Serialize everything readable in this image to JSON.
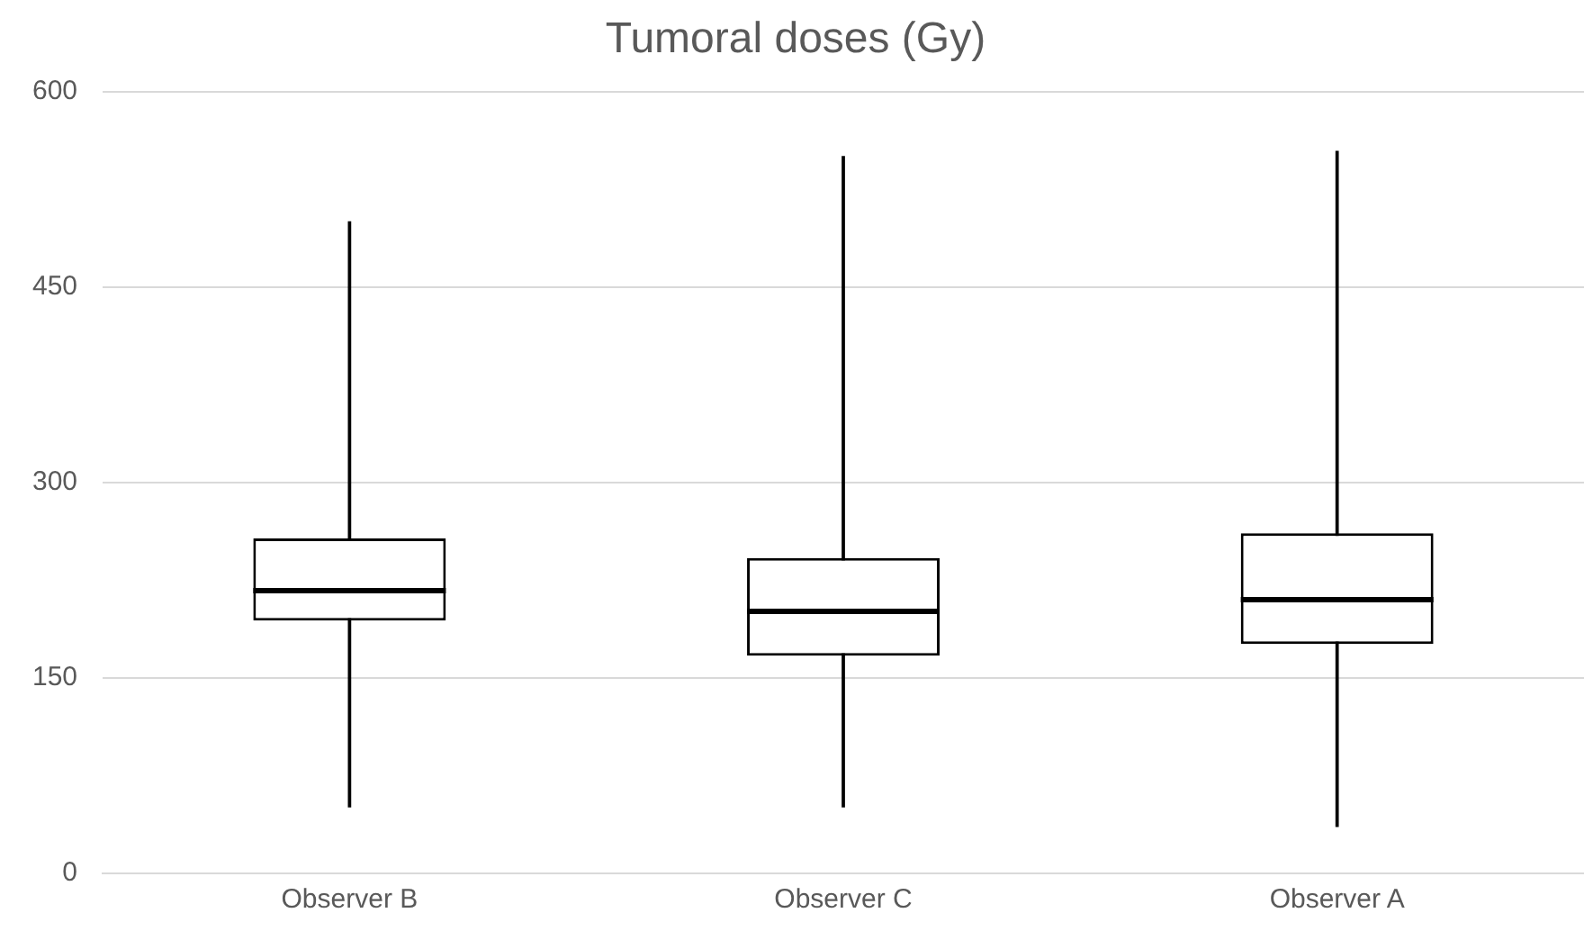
{
  "chart_data": {
    "type": "box",
    "title": "Tumoral doses (Gy)",
    "categories": [
      "Observer B",
      "Observer C",
      "Observer A"
    ],
    "boxes": [
      {
        "low": 51,
        "q1": 194,
        "median": 217,
        "q3": 257,
        "high": 500
      },
      {
        "low": 51,
        "q1": 167,
        "median": 201,
        "q3": 242,
        "high": 550
      },
      {
        "low": 36,
        "q1": 176,
        "median": 210,
        "q3": 261,
        "high": 554
      }
    ],
    "ylim": [
      0,
      600
    ],
    "yticks": [
      0,
      150,
      300,
      450,
      600
    ],
    "grid": "y",
    "color": "#000000"
  }
}
